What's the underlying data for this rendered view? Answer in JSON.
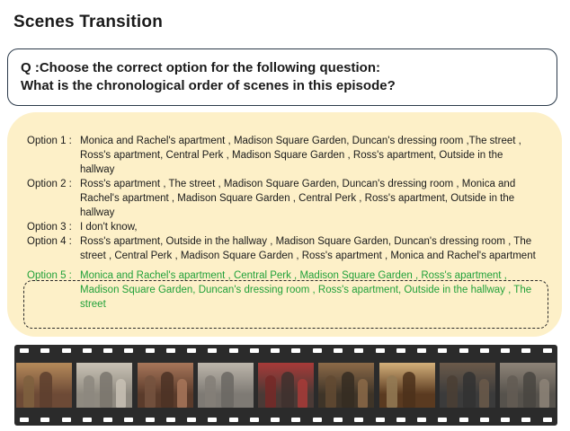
{
  "header": {
    "title": "Scenes Transition"
  },
  "question": {
    "line1": "Q :Choose the correct option for the following question:",
    "line2": "What is the chronological order of scenes in this episode?"
  },
  "options": [
    {
      "label": "Option 1 :",
      "text": "Monica and Rachel's apartment , Madison Square Garden, Duncan's dressing room ,The street , Ross's apartment, Central Perk , Madison Square Garden , Ross's apartment, Outside in the hallway",
      "correct": false
    },
    {
      "label": "Option 2 :",
      "text": "Ross's apartment , The street , Madison Square Garden, Duncan's dressing room , Monica and Rachel's apartment , Madison Square Garden , Central Perk , Ross's apartment, Outside in the hallway",
      "correct": false
    },
    {
      "label": "Option 3 :",
      "text": "I don't know,",
      "correct": false
    },
    {
      "label": "Option 4 :",
      "text": "Ross's apartment, Outside in the hallway , Madison Square Garden, Duncan's dressing room , The street , Central Perk , Madison Square Garden , Ross's apartment , Monica and Rachel's apartment",
      "correct": false
    },
    {
      "label": "Option 5 :",
      "text": "Monica and Rachel's apartment , Central Perk , Madison Square Garden , Ross's apartment , Madison Square Garden, Duncan's dressing room , Ross's apartment, Outside in the hallway , The street",
      "correct": true
    }
  ],
  "colors": {
    "panel_background": "#fdf0c8",
    "correct_option": "#22a13a",
    "film_strip": "#2b2b2b"
  },
  "filmstrip": {
    "frames": [
      {
        "scene": "monica-rachel-apartment-still",
        "bg": "#6d4a36",
        "tone": "#b58a5a"
      },
      {
        "scene": "central-perk-still",
        "bg": "#8f8a80",
        "tone": "#c9c2b5"
      },
      {
        "scene": "madison-square-garden-still",
        "bg": "#5a3b2b",
        "tone": "#a8765a"
      },
      {
        "scene": "ross-apartment-still",
        "bg": "#7e7a74",
        "tone": "#bdb6ab"
      },
      {
        "scene": "dressing-room-still",
        "bg": "#4a3a36",
        "tone": "#a83a38"
      },
      {
        "scene": "ross-apartment-still-2",
        "bg": "#3e3428",
        "tone": "#8c6a48"
      },
      {
        "scene": "hallway-still",
        "bg": "#5a3a20",
        "tone": "#d4b07a"
      },
      {
        "scene": "the-street-still",
        "bg": "#3b3b3b",
        "tone": "#6b5a4a"
      },
      {
        "scene": "the-street-still-2",
        "bg": "#56524c",
        "tone": "#8e8478"
      }
    ]
  }
}
